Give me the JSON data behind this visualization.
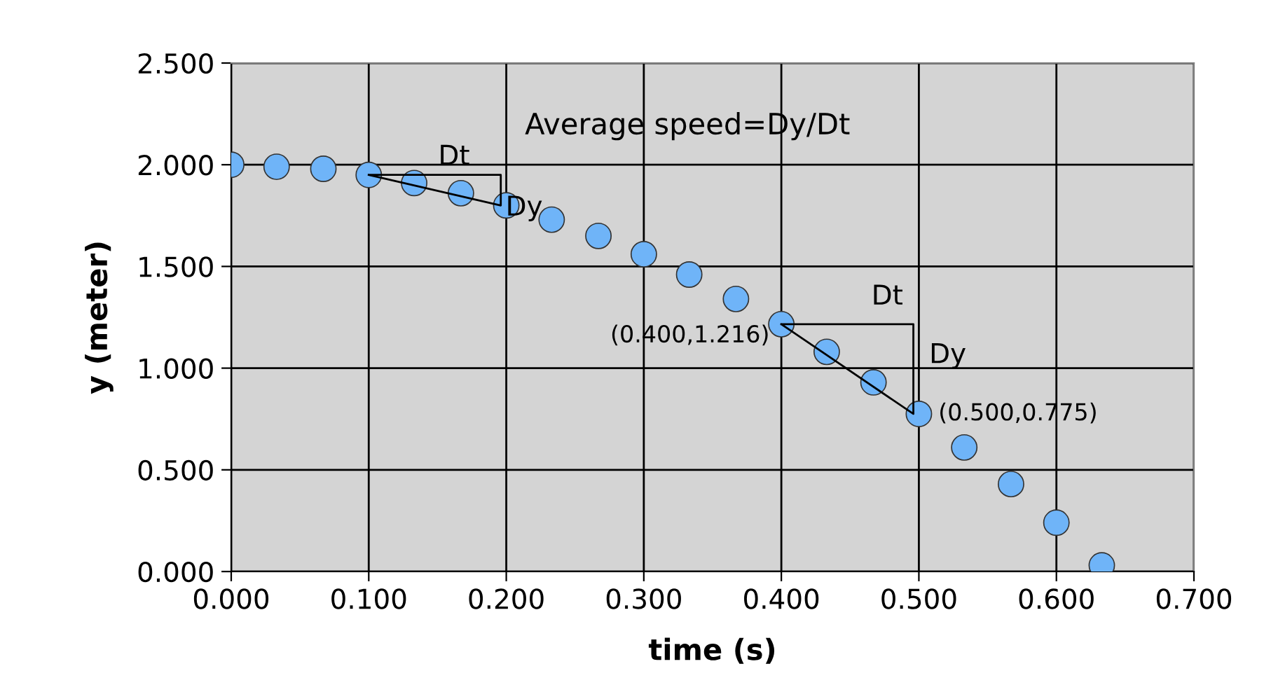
{
  "chart_data": {
    "type": "scatter",
    "xlabel": "time (s)",
    "ylabel": "y (meter)",
    "xlim": [
      0,
      0.7
    ],
    "xticks": [
      {
        "value": 0,
        "label": "0.000"
      },
      {
        "value": 0.1,
        "label": "0.100"
      },
      {
        "value": 0.2,
        "label": "0.200"
      },
      {
        "value": 0.3,
        "label": "0.300"
      },
      {
        "value": 0.4,
        "label": "0.400"
      },
      {
        "value": 0.5,
        "label": "0.500"
      },
      {
        "value": 0.6,
        "label": "0.600"
      },
      {
        "value": 0.7,
        "label": "0.700"
      }
    ],
    "ylim": [
      0,
      2.5
    ],
    "yticks": [
      {
        "value": 0,
        "label": "0.000"
      },
      {
        "value": 0.5,
        "label": "0.500"
      },
      {
        "value": 1,
        "label": "1.000"
      },
      {
        "value": 1.5,
        "label": "1.500"
      },
      {
        "value": 2,
        "label": "2.000"
      },
      {
        "value": 2.5,
        "label": "2.500"
      }
    ],
    "grid": true,
    "marker": "circle",
    "series": [
      {
        "color": "#6fb4f8",
        "x": [
          0,
          0.033,
          0.067,
          0.1,
          0.133,
          0.167,
          0.2,
          0.233,
          0.267,
          0.3,
          0.333,
          0.367,
          0.4,
          0.433,
          0.467,
          0.5,
          0.533,
          0.567,
          0.6,
          0.633
        ],
        "values": [
          2.0,
          1.99,
          1.98,
          1.95,
          1.91,
          1.86,
          1.8,
          1.73,
          1.65,
          1.56,
          1.46,
          1.34,
          1.216,
          1.08,
          0.93,
          0.775,
          0.61,
          0.43,
          0.24,
          0.03
        ]
      }
    ],
    "annotations": [
      "Average speed=Dy/Dt",
      "Dt",
      "Dy",
      "Dt",
      "Dy",
      {
        "text": "(0.400,1.216)",
        "x": 0.4,
        "y": 1.216
      },
      {
        "text": "(0.500,0.775)",
        "x": 0.5,
        "y": 0.775
      }
    ]
  }
}
